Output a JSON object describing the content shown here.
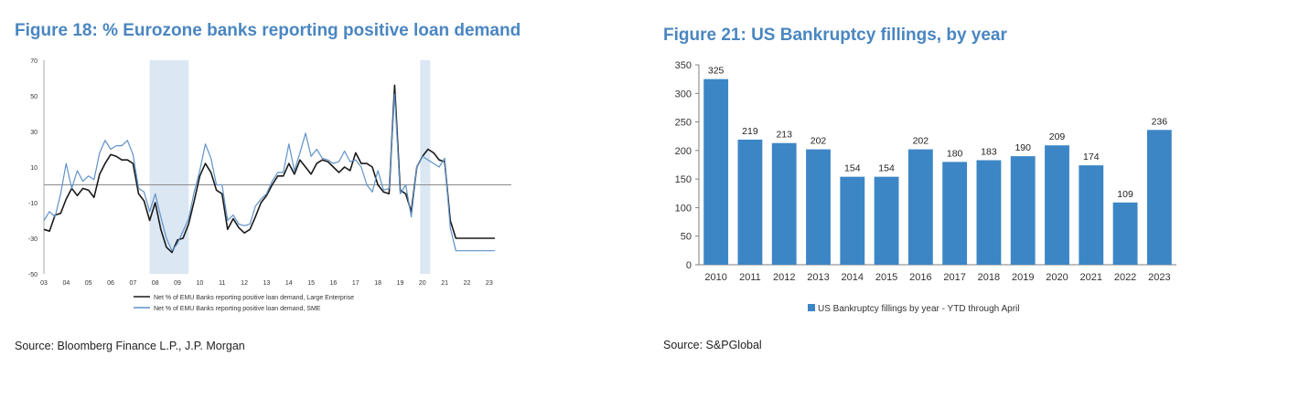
{
  "left": {
    "title": "Figure 18: % Eurozone banks reporting positive loan demand",
    "source": "Source: Bloomberg Finance L.P., J.P. Morgan",
    "colors": {
      "large": "#1a1a1a",
      "sme": "#5f92c8",
      "shade": "#dbe7f3",
      "zero": "#8a8a8a"
    },
    "chart_data": {
      "type": "line",
      "title": "Figure 18: % Eurozone banks reporting positive loan demand",
      "xlabel": "",
      "ylabel": "",
      "xlim": [
        2003,
        2023.5
      ],
      "ylim": [
        -50,
        70
      ],
      "y_ticks": [
        70,
        50,
        30,
        10,
        -10,
        -30,
        -50
      ],
      "x_ticks": [
        "03",
        "04",
        "05",
        "06",
        "07",
        "08",
        "09",
        "10",
        "11",
        "12",
        "13",
        "14",
        "15",
        "16",
        "17",
        "18",
        "19",
        "20",
        "21",
        "22",
        "23"
      ],
      "grid": false,
      "legend": "bottom",
      "shaded_periods": [
        [
          2007.75,
          2009.5
        ],
        [
          2019.9,
          2020.35
        ]
      ],
      "x": [
        2003.0,
        2003.25,
        2003.5,
        2003.75,
        2004.0,
        2004.25,
        2004.5,
        2004.75,
        2005.0,
        2005.25,
        2005.5,
        2005.75,
        2006.0,
        2006.25,
        2006.5,
        2006.75,
        2007.0,
        2007.25,
        2007.5,
        2007.75,
        2008.0,
        2008.25,
        2008.5,
        2008.75,
        2009.0,
        2009.25,
        2009.5,
        2009.75,
        2010.0,
        2010.25,
        2010.5,
        2010.75,
        2011.0,
        2011.25,
        2011.5,
        2011.75,
        2012.0,
        2012.25,
        2012.5,
        2012.75,
        2013.0,
        2013.25,
        2013.5,
        2013.75,
        2014.0,
        2014.25,
        2014.5,
        2014.75,
        2015.0,
        2015.25,
        2015.5,
        2015.75,
        2016.0,
        2016.25,
        2016.5,
        2016.75,
        2017.0,
        2017.25,
        2017.5,
        2017.75,
        2018.0,
        2018.25,
        2018.5,
        2018.75,
        2019.0,
        2019.25,
        2019.5,
        2019.75,
        2020.0,
        2020.25,
        2020.5,
        2020.75,
        2021.0,
        2021.25,
        2021.5,
        2021.75,
        2022.0,
        2022.25,
        2022.5,
        2022.75,
        2023.0,
        2023.25
      ],
      "series": [
        {
          "name": "Net % of EMU Banks reporting positive loan demand, Large Enterprise",
          "values": [
            -25,
            -26,
            -17,
            -16,
            -8,
            -2,
            -6,
            -2,
            -3,
            -7,
            6,
            12,
            17,
            16,
            14,
            14,
            12,
            -5,
            -9,
            -20,
            -10,
            -25,
            -35,
            -38,
            -31,
            -30,
            -22,
            -9,
            5,
            12,
            7,
            -3,
            -5,
            -25,
            -19,
            -24,
            -27,
            -25,
            -18,
            -10,
            -6,
            0,
            5,
            5,
            12,
            6,
            14,
            10,
            6,
            12,
            14,
            13,
            10,
            7,
            10,
            8,
            18,
            12,
            12,
            10,
            0,
            -4,
            -5,
            56,
            -3,
            -5,
            -15,
            10,
            16,
            20,
            18,
            14,
            13,
            -20,
            -30,
            -30,
            -30,
            -30,
            -30,
            -30,
            -30,
            -30
          ]
        },
        {
          "name": "Net % of EMU Banks reporting positive loan demand, SME",
          "values": [
            -20,
            -15,
            -18,
            -5,
            12,
            -2,
            8,
            2,
            5,
            3,
            18,
            25,
            20,
            22,
            22,
            25,
            17,
            -2,
            -4,
            -15,
            -5,
            -18,
            -30,
            -37,
            -33,
            -26,
            -19,
            -4,
            8,
            23,
            15,
            0,
            0,
            -20,
            -17,
            -22,
            -23,
            -22,
            -12,
            -8,
            -5,
            2,
            7,
            7,
            23,
            8,
            18,
            29,
            16,
            20,
            15,
            14,
            12,
            13,
            19,
            13,
            14,
            10,
            0,
            -4,
            8,
            -3,
            -2,
            51,
            -5,
            0,
            -18,
            10,
            16,
            14,
            12,
            10,
            15,
            -24,
            -37,
            -37,
            -37,
            -37,
            -37,
            -37,
            -37,
            -37
          ]
        }
      ]
    },
    "legend_items": [
      "Net % of EMU Banks reporting positive loan demand, Large Enterprise",
      "Net % of EMU Banks reporting positive loan demand, SME"
    ]
  },
  "right": {
    "title": "Figure 21: US Bankruptcy fillings, by year",
    "source": "Source: S&PGlobal",
    "colors": {
      "bar": "#3d86c6",
      "axis": "#7f7f7f"
    },
    "chart_data": {
      "type": "bar",
      "title": "Figure 21: US Bankruptcy fillings, by year",
      "xlabel": "",
      "ylabel": "",
      "ylim": [
        0,
        350
      ],
      "y_ticks": [
        0,
        50,
        100,
        150,
        200,
        250,
        300,
        350
      ],
      "grid": false,
      "legend": "bottom",
      "categories": [
        "2010",
        "2011",
        "2012",
        "2013",
        "2014",
        "2015",
        "2016",
        "2017",
        "2018",
        "2019",
        "2020",
        "2021",
        "2022",
        "2023"
      ],
      "series": [
        {
          "name": "US Bankruptcy fillings by year - YTD through April",
          "values": [
            325,
            219,
            213,
            202,
            154,
            154,
            202,
            180,
            183,
            190,
            209,
            174,
            109,
            236
          ]
        }
      ]
    }
  }
}
